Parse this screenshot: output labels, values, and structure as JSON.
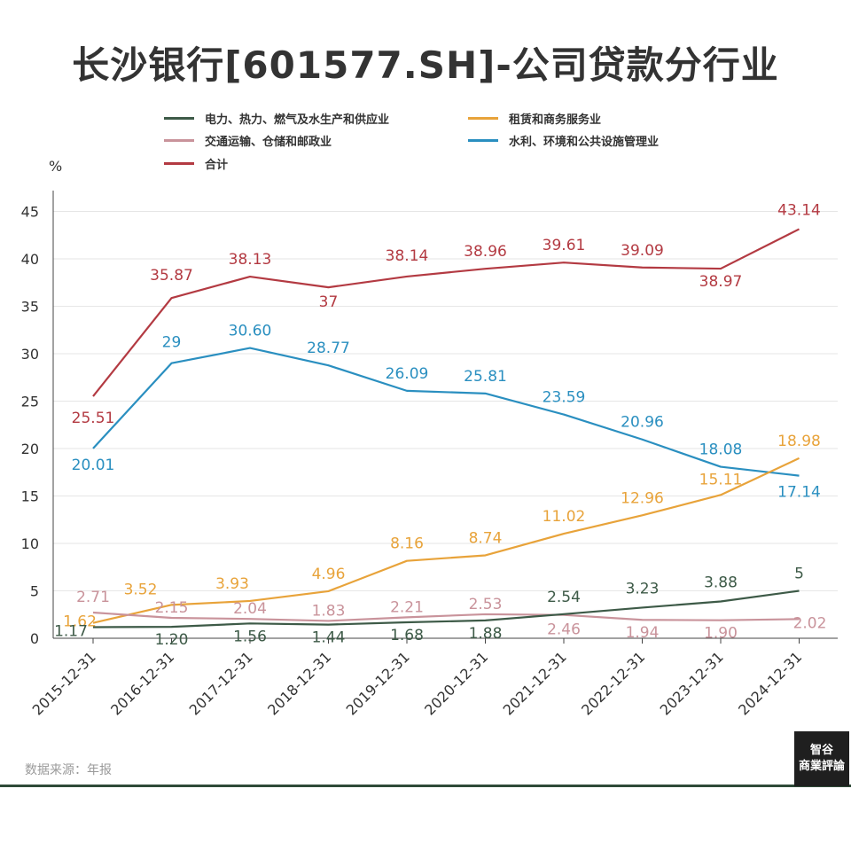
{
  "header": {
    "title": "长沙银行[601577.SH]-公司贷款分行业"
  },
  "footer": {
    "source": "数据来源：年报"
  },
  "logo": {
    "line1": "智谷",
    "line2": "商業評論"
  },
  "chart_data": {
    "type": "line",
    "title": "长沙银行[601577.SH]-公司贷款分行业",
    "ylabel": "%",
    "xlabel": "",
    "ylim": [
      0,
      45
    ],
    "yticks": [
      0,
      5,
      10,
      15,
      20,
      25,
      30,
      35,
      40,
      45
    ],
    "grid": true,
    "legend": "top",
    "categories": [
      "2015-12-31",
      "2016-12-31",
      "2017-12-31",
      "2018-12-31",
      "2019-12-31",
      "2020-12-31",
      "2021-12-31",
      "2022-12-31",
      "2023-12-31",
      "2024-12-31"
    ],
    "series": [
      {
        "name": "合计",
        "color": "#b33a42",
        "values": [
          25.51,
          35.87,
          38.13,
          37,
          38.14,
          38.96,
          39.61,
          39.09,
          38.97,
          43.14
        ],
        "labels": [
          "25.51",
          "35.87",
          "38.13",
          "37",
          "38.14",
          "38.96",
          "39.61",
          "39.09",
          "38.97",
          "43.14"
        ]
      },
      {
        "name": "水利、环境和公共设施管理业",
        "color": "#2a8fc0",
        "values": [
          20.01,
          29,
          30.6,
          28.77,
          26.09,
          25.81,
          23.59,
          20.96,
          18.08,
          17.14
        ],
        "labels": [
          "20.01",
          "29",
          "30.60",
          "28.77",
          "26.09",
          "25.81",
          "23.59",
          "20.96",
          "18.08",
          "17.14"
        ]
      },
      {
        "name": "租赁和商务服务业",
        "color": "#e8a33a",
        "values": [
          1.62,
          3.52,
          3.93,
          4.96,
          8.16,
          8.74,
          11.02,
          12.96,
          15.11,
          18.98
        ],
        "labels": [
          "1.62",
          "3.52",
          "3.93",
          "4.96",
          "8.16",
          "8.74",
          "11.02",
          "12.96",
          "15.11",
          "18.98"
        ]
      },
      {
        "name": "交通运输、仓储和邮政业",
        "color": "#c9939b",
        "values": [
          2.71,
          2.15,
          2.04,
          1.83,
          2.21,
          2.53,
          2.46,
          1.94,
          1.9,
          2.02
        ],
        "labels": [
          "2.71",
          "2.15",
          "2.04",
          "1.83",
          "2.21",
          "2.53",
          "2.46",
          "1.94",
          "1.90",
          "2.02"
        ]
      },
      {
        "name": "电力、热力、燃气及水生产和供应业",
        "color": "#3d5a47",
        "values": [
          1.17,
          1.2,
          1.56,
          1.44,
          1.68,
          1.88,
          2.54,
          3.23,
          3.88,
          5
        ],
        "labels": [
          "1.17",
          "1.20",
          "1.56",
          "1.44",
          "1.68",
          "1.88",
          "2.54",
          "3.23",
          "3.88",
          "5"
        ]
      }
    ]
  }
}
